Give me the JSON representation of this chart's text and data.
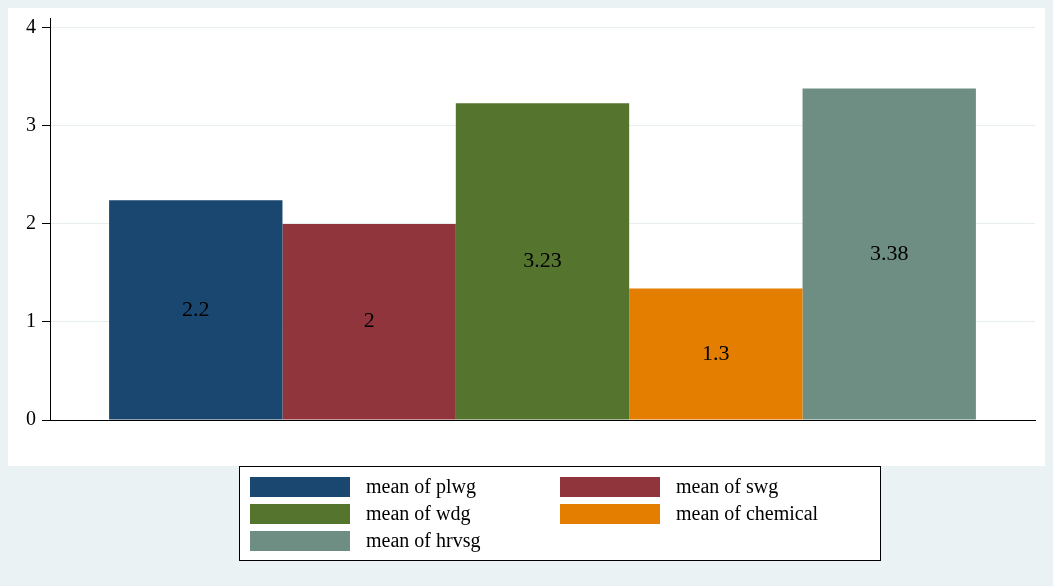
{
  "chart_data": {
    "type": "bar",
    "categories": [
      null
    ],
    "series": [
      {
        "name": "mean of plwg",
        "color": "#1a476f",
        "values": [
          2.24
        ],
        "value_labels": [
          "2.2"
        ]
      },
      {
        "name": "mean of swg",
        "color": "#90353b",
        "values": [
          2
        ],
        "value_labels": [
          "2"
        ]
      },
      {
        "name": "mean of wdg",
        "color": "#55752f",
        "values": [
          3.23
        ],
        "value_labels": [
          "3.23"
        ]
      },
      {
        "name": "mean of chemical",
        "color": "#e37e00",
        "values": [
          1.34
        ],
        "value_labels": [
          "1.3"
        ]
      },
      {
        "name": "mean of hrvsg",
        "color": "#6e8e84",
        "values": [
          3.38
        ],
        "value_labels": [
          "3.38"
        ]
      }
    ],
    "ylim": [
      0,
      4.1
    ],
    "yticks": [
      0,
      1,
      2,
      3,
      4
    ],
    "grid": "y",
    "legend": "bottom"
  }
}
